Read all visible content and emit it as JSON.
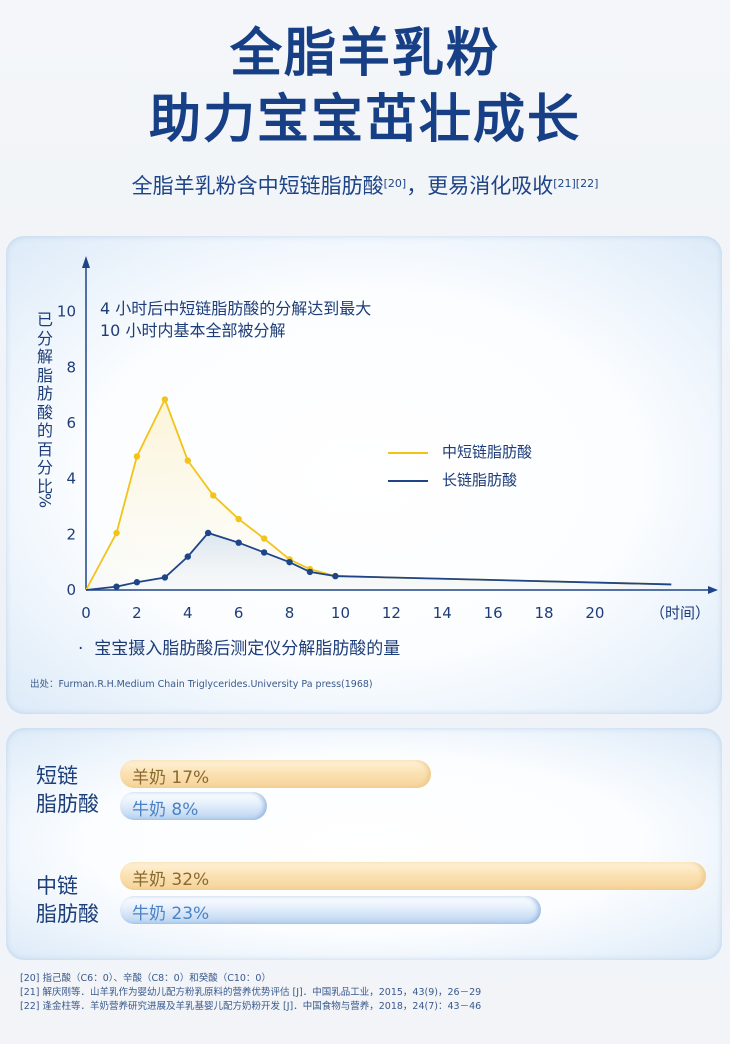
{
  "header": {
    "title_line1": "全脂羊乳粉",
    "title_line2": "助力宝宝茁壮成长",
    "subtitle_text": "全脂羊乳粉含中短链脂肪酸",
    "subtitle_ref1": "[20]",
    "subtitle_text2": "，更易消化吸收",
    "subtitle_ref2": "[21][22]"
  },
  "chart_data": {
    "type": "line",
    "ylabel": "已分解脂肪酸的百分比%",
    "xlabel": "（时间）",
    "x_ticks": [
      0,
      2,
      4,
      6,
      8,
      10,
      12,
      14,
      16,
      18,
      20
    ],
    "y_ticks": [
      0,
      2,
      4,
      6,
      8,
      10
    ],
    "xlim": [
      0,
      23.5
    ],
    "ylim": [
      0,
      11.5
    ],
    "annotation_line1": "4 小时后中短链脂肪酸的分解达到最大",
    "annotation_line2": "10 小时内基本全部被分解",
    "series": [
      {
        "name": "中短链脂肪酸",
        "color": "#f2c318",
        "points": [
          [
            0,
            0
          ],
          [
            1.2,
            2.05
          ],
          [
            2,
            4.8
          ],
          [
            3.1,
            6.85
          ],
          [
            4,
            4.65
          ],
          [
            5,
            3.4
          ],
          [
            6,
            2.55
          ],
          [
            7,
            1.85
          ],
          [
            8,
            1.1
          ],
          [
            8.8,
            0.75
          ],
          [
            9.8,
            0.5
          ],
          [
            23,
            0.2
          ]
        ],
        "markers": [
          [
            1.2,
            2.05
          ],
          [
            2,
            4.8
          ],
          [
            3.1,
            6.85
          ],
          [
            4,
            4.65
          ],
          [
            5,
            3.4
          ],
          [
            6,
            2.55
          ],
          [
            7,
            1.85
          ],
          [
            8,
            1.1
          ],
          [
            8.8,
            0.75
          ],
          [
            9.8,
            0.5
          ]
        ]
      },
      {
        "name": "长链脂肪酸",
        "color": "#1f4588",
        "points": [
          [
            0,
            0
          ],
          [
            1.2,
            0.12
          ],
          [
            2,
            0.28
          ],
          [
            3.1,
            0.45
          ],
          [
            4,
            1.2
          ],
          [
            4.8,
            2.05
          ],
          [
            6,
            1.7
          ],
          [
            7,
            1.35
          ],
          [
            8,
            1.0
          ],
          [
            8.8,
            0.65
          ],
          [
            9.8,
            0.5
          ],
          [
            23,
            0.2
          ]
        ],
        "markers": [
          [
            1.2,
            0.12
          ],
          [
            2,
            0.28
          ],
          [
            3.1,
            0.45
          ],
          [
            4,
            1.2
          ],
          [
            4.8,
            2.05
          ],
          [
            6,
            1.7
          ],
          [
            7,
            1.35
          ],
          [
            8,
            1.0
          ],
          [
            8.8,
            0.65
          ],
          [
            9.8,
            0.5
          ]
        ]
      }
    ],
    "note": "宝宝摄入脂肪酸后测定仪分解脂肪酸的量",
    "source": "出处：Furman.R.H.Medium Chain Triglycerides.University Pa press(1968)"
  },
  "comparison": {
    "groups": [
      {
        "label_line1": "短链",
        "label_line2": "脂肪酸",
        "bars": [
          {
            "label": "羊奶 17%",
            "value": 17,
            "kind": "goat"
          },
          {
            "label": "牛奶 8%",
            "value": 8,
            "kind": "cow"
          }
        ]
      },
      {
        "label_line1": "中链",
        "label_line2": "脂肪酸",
        "bars": [
          {
            "label": "羊奶 32%",
            "value": 32,
            "kind": "goat"
          },
          {
            "label": "牛奶 23%",
            "value": 23,
            "kind": "cow"
          }
        ]
      }
    ]
  },
  "references": [
    "[20] 指己酸（C6：0）、辛酸（C8：0）和癸酸（C10：0）",
    "[21] 解庆刚等．山羊乳作为婴幼儿配方粉乳原料的营养优势评估 [J]．中国乳品工业，2015，43(9)，26－29",
    "[22] 逢金柱等．羊奶营养研究进展及羊乳基婴儿配方奶粉开发 [J]．中国食物与营养，2018，24(7)：43－46"
  ]
}
